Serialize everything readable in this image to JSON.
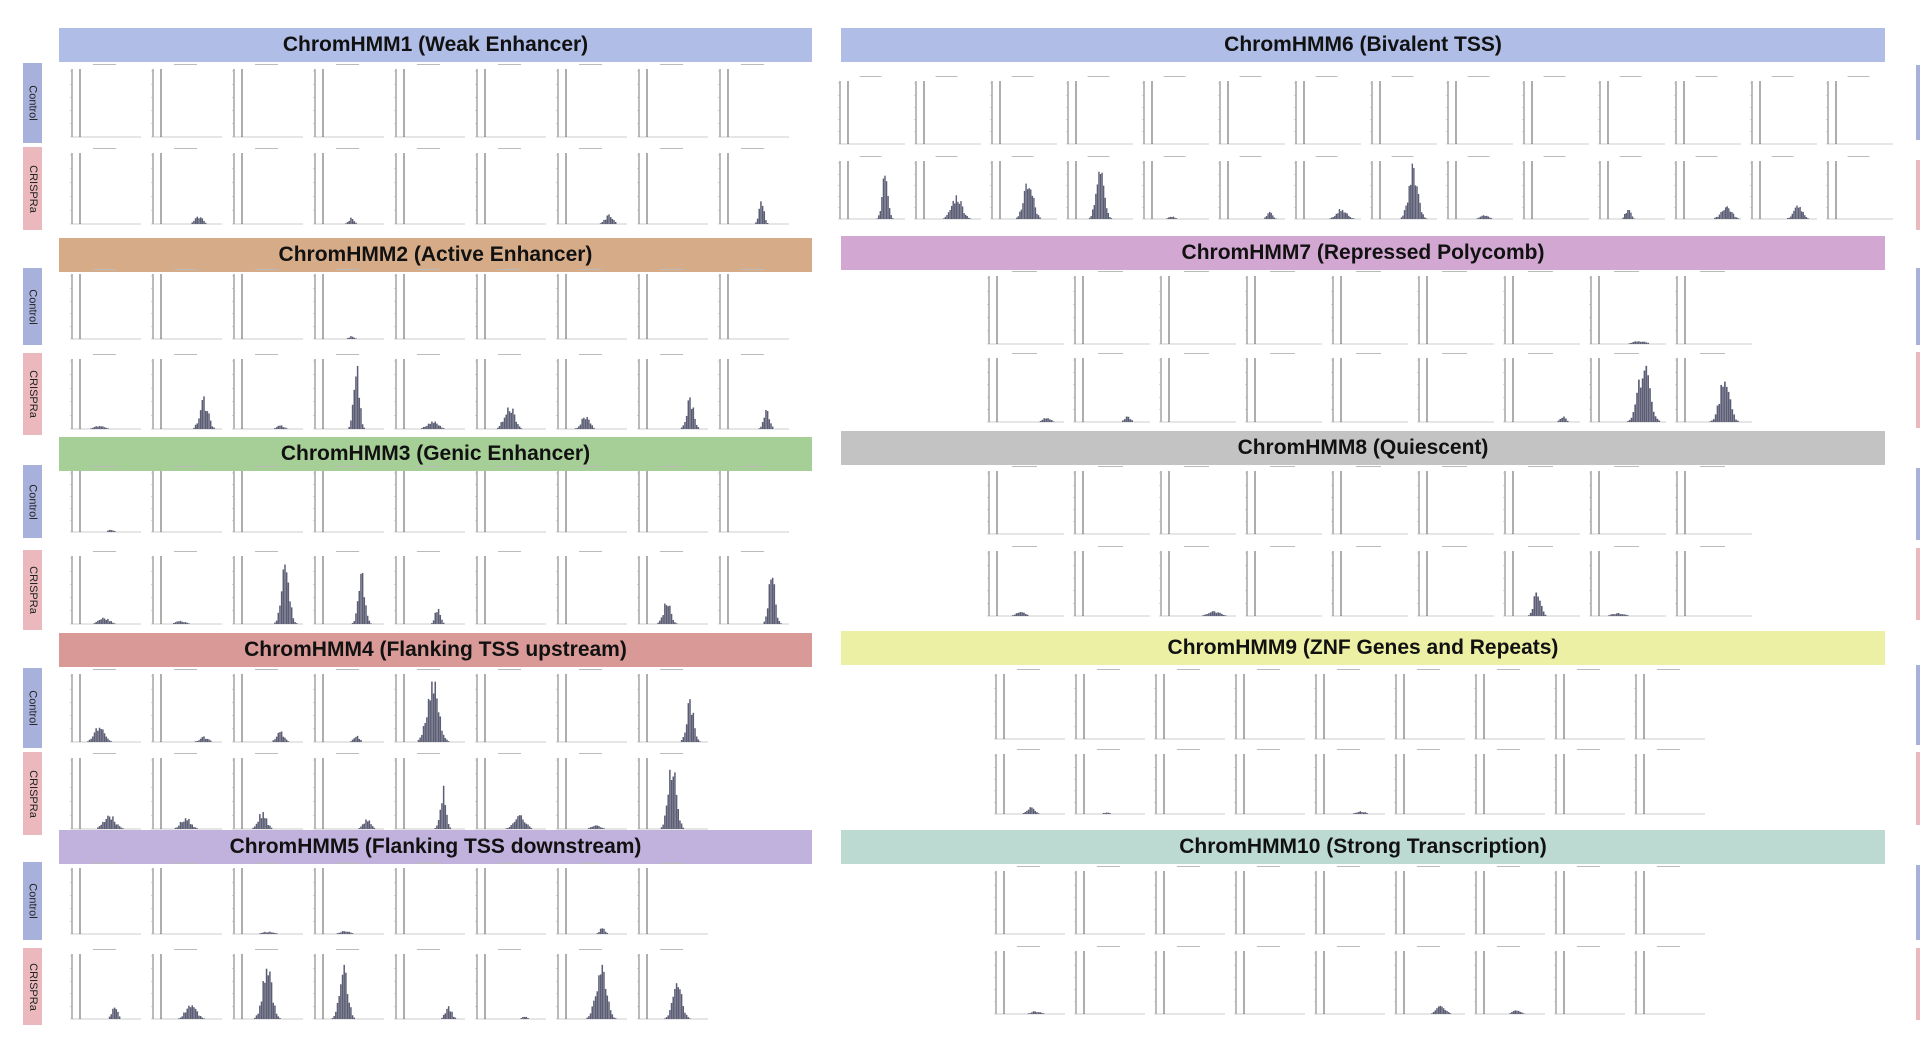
{
  "row_labels": {
    "control": "Control",
    "crispra": "CRISPRa"
  },
  "colors": {
    "control_tag": "#a8b0dc",
    "crispra_tag": "#eab8bd",
    "bar": "#5b5d74",
    "axis": "#555555"
  },
  "sections": [
    {
      "id": "1",
      "title": "ChromHMM1 (Weak Enhancer)",
      "color": "#b0bde6",
      "panels": 9,
      "control": [
        0,
        0,
        0,
        0,
        0,
        0,
        0,
        0,
        0
      ],
      "crispra": [
        0,
        0.12,
        0,
        0.1,
        0,
        0,
        0.14,
        0,
        0.35
      ]
    },
    {
      "id": "2",
      "title": "ChromHMM2 (Active Enhancer)",
      "color": "#d6ac88",
      "panels": 9,
      "control": [
        0,
        0,
        0,
        0.05,
        0,
        0,
        0,
        0,
        0
      ],
      "crispra": [
        0.05,
        0.45,
        0.06,
        1,
        0.12,
        0.4,
        0.2,
        0.5,
        0.35
      ]
    },
    {
      "id": "3",
      "title": "ChromHMM3 (Genic Enhancer)",
      "color": "#a6cf98",
      "panels": 9,
      "control": [
        0.04,
        0,
        0,
        0,
        0,
        0,
        0,
        0,
        0
      ],
      "crispra": [
        0.1,
        0.05,
        0.9,
        0.8,
        0.3,
        0,
        0,
        0.35,
        0.8
      ]
    },
    {
      "id": "4",
      "title": "ChromHMM4 (Flanking TSS upstream)",
      "color": "#d99a97",
      "panels": 8,
      "control": [
        0.25,
        0.08,
        0.18,
        0.1,
        1,
        0,
        0,
        0.7
      ],
      "crispra": [
        0.22,
        0.18,
        0.25,
        0.15,
        0.6,
        0.2,
        0.05,
        1
      ]
    },
    {
      "id": "5",
      "title": "ChromHMM5 (Flanking TSS downstream)",
      "color": "#c0b1dd",
      "panels": 8,
      "control": [
        0,
        0,
        0.04,
        0.05,
        0,
        0,
        0.1,
        0
      ],
      "crispra": [
        0.25,
        0.25,
        0.9,
        1,
        0.2,
        0.05,
        0.9,
        0.6
      ]
    },
    {
      "id": "6",
      "title": "ChromHMM6 (Bivalent TSS)",
      "color": "#b0bde6",
      "panels": 14,
      "control": [
        0,
        0,
        0,
        0,
        0,
        0,
        0,
        0,
        0,
        0,
        0,
        0,
        0,
        0
      ],
      "crispra": [
        0.9,
        0.45,
        0.8,
        0.95,
        0.05,
        0.15,
        0.2,
        1,
        0.08,
        0,
        0.2,
        0.25,
        0.25,
        0
      ]
    },
    {
      "id": "7",
      "title": "ChromHMM7 (Repressed Polycomb)",
      "color": "#d2a8d2",
      "panels": 9,
      "control": [
        0,
        0,
        0,
        0,
        0,
        0,
        0,
        0.05,
        0
      ],
      "crispra": [
        0.08,
        0.1,
        0,
        0,
        0,
        0,
        0.1,
        0.95,
        0.75
      ]
    },
    {
      "id": "8",
      "title": "ChromHMM8 (Quiescent)",
      "color": "#c3c3c3",
      "panels": 9,
      "control": [
        0,
        0,
        0,
        0,
        0,
        0,
        0,
        0,
        0
      ],
      "crispra": [
        0.08,
        0,
        0.08,
        0,
        0,
        0,
        0.45,
        0.05,
        0
      ]
    },
    {
      "id": "9",
      "title": "ChromHMM9 (ZNF Genes and Repeats)",
      "color": "#ecf0a5",
      "panels": 9,
      "control": [
        0,
        0,
        0,
        0,
        0,
        0,
        0,
        0,
        0
      ],
      "crispra": [
        0.12,
        0.03,
        0,
        0,
        0.05,
        0,
        0,
        0,
        0
      ]
    },
    {
      "id": "10",
      "title": "ChromHMM10 (Strong Transcription)",
      "color": "#bcdad2",
      "panels": 9,
      "control": [
        0,
        0,
        0,
        0,
        0,
        0,
        0,
        0,
        0
      ],
      "crispra": [
        0.05,
        0,
        0,
        0,
        0,
        0.15,
        0.08,
        0,
        0
      ]
    }
  ],
  "chart_data": {
    "type": "bar",
    "note_values": "Each section holds small-multiple histograms; per-panel numbers are approximate relative peak heights (0-1) read from the image.",
    "rows": [
      "Control",
      "CRISPRa"
    ]
  }
}
